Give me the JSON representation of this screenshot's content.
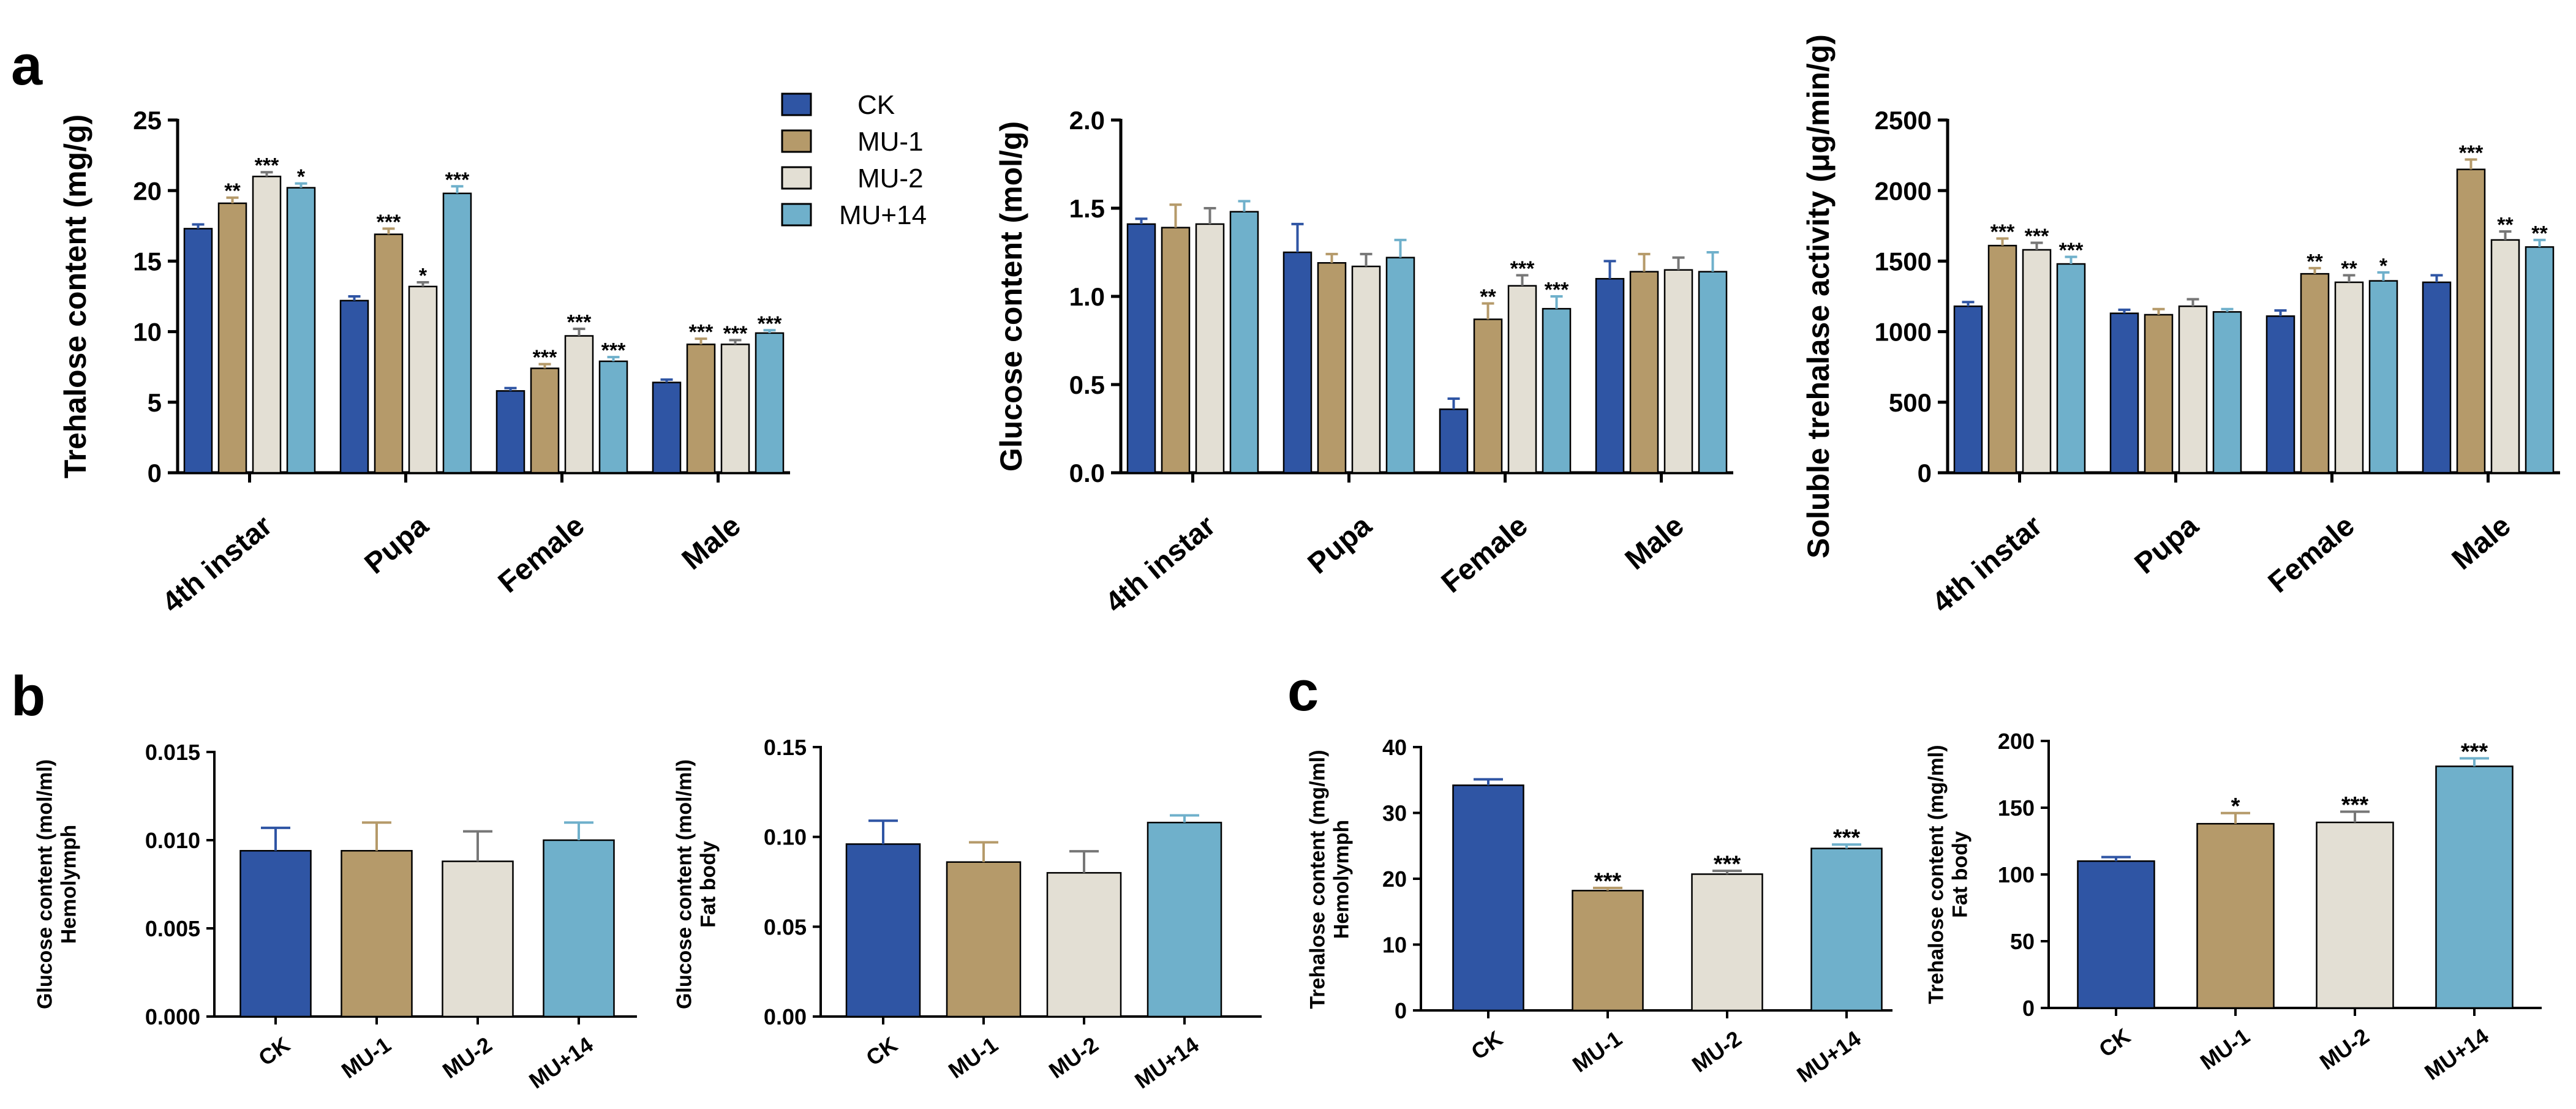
{
  "figure": {
    "panel_letters": [
      "a",
      "b",
      "c"
    ],
    "legend": [
      "CK",
      "MU-1",
      "MU-2",
      "MU+14"
    ]
  },
  "colors": {
    "CK": "#2f55a4",
    "MU-1": "#b59a6a",
    "MU-2": "#e3dfd4",
    "MU+14": "#6fb0cb",
    "axis": "#000000"
  },
  "chart_data": [
    {
      "type": "bar",
      "panel": "a",
      "ylabel": "Trehalose content (mg/g)",
      "ylim": [
        0,
        25
      ],
      "yticks": [
        "0",
        "5",
        "10",
        "15",
        "20",
        "25"
      ],
      "categories": [
        "4th instar",
        "Pupa",
        "Female",
        "Male"
      ],
      "series": [
        {
          "name": "CK",
          "values": [
            17.3,
            12.2,
            5.8,
            6.4
          ],
          "errors": [
            0.3,
            0.3,
            0.2,
            0.2
          ],
          "stars": [
            "",
            "",
            "",
            ""
          ]
        },
        {
          "name": "MU-1",
          "values": [
            19.1,
            16.9,
            7.4,
            9.1
          ],
          "errors": [
            0.4,
            0.4,
            0.3,
            0.4
          ],
          "stars": [
            "**",
            "***",
            "***",
            "***"
          ]
        },
        {
          "name": "MU-2",
          "values": [
            21.0,
            13.2,
            9.7,
            9.1
          ],
          "errors": [
            0.3,
            0.3,
            0.5,
            0.3
          ],
          "stars": [
            "***",
            "*",
            "***",
            "***"
          ]
        },
        {
          "name": "MU+14",
          "values": [
            20.2,
            19.8,
            7.9,
            9.9
          ],
          "errors": [
            0.3,
            0.5,
            0.3,
            0.2
          ],
          "stars": [
            "*",
            "***",
            "***",
            "***"
          ]
        }
      ]
    },
    {
      "type": "bar",
      "panel": "a",
      "ylabel": "Glucose content (mol/g)",
      "ylim": [
        0,
        2.0
      ],
      "yticks": [
        "0.0",
        "0.5",
        "1.0",
        "1.5",
        "2.0"
      ],
      "categories": [
        "4th instar",
        "Pupa",
        "Female",
        "Male"
      ],
      "series": [
        {
          "name": "CK",
          "values": [
            1.41,
            1.25,
            0.36,
            1.1
          ],
          "errors": [
            0.03,
            0.16,
            0.06,
            0.1
          ],
          "stars": [
            "",
            "",
            "",
            ""
          ]
        },
        {
          "name": "MU-1",
          "values": [
            1.39,
            1.19,
            0.87,
            1.14
          ],
          "errors": [
            0.13,
            0.05,
            0.09,
            0.1
          ],
          "stars": [
            "",
            "",
            "**",
            ""
          ]
        },
        {
          "name": "MU-2",
          "values": [
            1.41,
            1.17,
            1.06,
            1.15
          ],
          "errors": [
            0.09,
            0.07,
            0.06,
            0.07
          ],
          "stars": [
            "",
            "",
            "***",
            ""
          ]
        },
        {
          "name": "MU+14",
          "values": [
            1.48,
            1.22,
            0.93,
            1.14
          ],
          "errors": [
            0.06,
            0.1,
            0.07,
            0.11
          ],
          "stars": [
            "",
            "",
            "***",
            ""
          ]
        }
      ]
    },
    {
      "type": "bar",
      "panel": "a",
      "ylabel": "Soluble trehalase activity (μg/min/g)",
      "ylim": [
        0,
        2500
      ],
      "yticks": [
        "0",
        "500",
        "1000",
        "1500",
        "2000",
        "2500"
      ],
      "categories": [
        "4th instar",
        "Pupa",
        "Female",
        "Male"
      ],
      "series": [
        {
          "name": "CK",
          "values": [
            1180,
            1130,
            1110,
            1350
          ],
          "errors": [
            30,
            25,
            40,
            50
          ],
          "stars": [
            "",
            "",
            "",
            ""
          ]
        },
        {
          "name": "MU-1",
          "values": [
            1610,
            1120,
            1410,
            2150
          ],
          "errors": [
            50,
            40,
            40,
            70
          ],
          "stars": [
            "***",
            "",
            "**",
            "***"
          ]
        },
        {
          "name": "MU-2",
          "values": [
            1580,
            1180,
            1350,
            1650
          ],
          "errors": [
            50,
            50,
            50,
            60
          ],
          "stars": [
            "***",
            "",
            "**",
            "**"
          ]
        },
        {
          "name": "MU+14",
          "values": [
            1480,
            1140,
            1360,
            1600
          ],
          "errors": [
            50,
            20,
            60,
            50
          ],
          "stars": [
            "***",
            "",
            "*",
            "**"
          ]
        }
      ]
    },
    {
      "type": "bar",
      "panel": "b",
      "ylabel": [
        "Glucose content (mol/ml)",
        "Hemolymph"
      ],
      "ylim": [
        0,
        0.015
      ],
      "yticks": [
        "0.000",
        "0.005",
        "0.010",
        "0.015"
      ],
      "categories": [
        "CK",
        "MU-1",
        "MU-2",
        "MU+14"
      ],
      "values": [
        0.0094,
        0.0094,
        0.0088,
        0.01
      ],
      "errors": [
        0.0013,
        0.0016,
        0.0017,
        0.001
      ],
      "stars": [
        "",
        "",
        "",
        ""
      ]
    },
    {
      "type": "bar",
      "panel": "b",
      "ylabel": [
        "Glucose content (mol/ml)",
        "Fat body"
      ],
      "ylim": [
        0,
        0.15
      ],
      "yticks": [
        "0.00",
        "0.05",
        "0.10",
        "0.15"
      ],
      "categories": [
        "CK",
        "MU-1",
        "MU-2",
        "MU+14"
      ],
      "values": [
        0.096,
        0.086,
        0.08,
        0.108
      ],
      "errors": [
        0.013,
        0.011,
        0.012,
        0.004
      ],
      "stars": [
        "",
        "",
        "",
        ""
      ]
    },
    {
      "type": "bar",
      "panel": "c",
      "ylabel": [
        "Trehalose content (mg/ml)",
        "Hemolymph"
      ],
      "ylim": [
        0,
        40
      ],
      "yticks": [
        "0",
        "10",
        "20",
        "30",
        "40"
      ],
      "categories": [
        "CK",
        "MU-1",
        "MU-2",
        "MU+14"
      ],
      "values": [
        34.2,
        18.2,
        20.7,
        24.6
      ],
      "errors": [
        0.9,
        0.4,
        0.5,
        0.6
      ],
      "stars": [
        "",
        "***",
        "***",
        "***"
      ]
    },
    {
      "type": "bar",
      "panel": "c",
      "ylabel": [
        "Trehalose content (mg/ml)",
        "Fat body"
      ],
      "ylim": [
        0,
        200
      ],
      "yticks": [
        "0",
        "50",
        "100",
        "150",
        "200"
      ],
      "categories": [
        "CK",
        "MU-1",
        "MU-2",
        "MU+14"
      ],
      "values": [
        110,
        138,
        139,
        181
      ],
      "errors": [
        3,
        8,
        8,
        6
      ],
      "stars": [
        "",
        "*",
        "***",
        "***"
      ]
    }
  ]
}
